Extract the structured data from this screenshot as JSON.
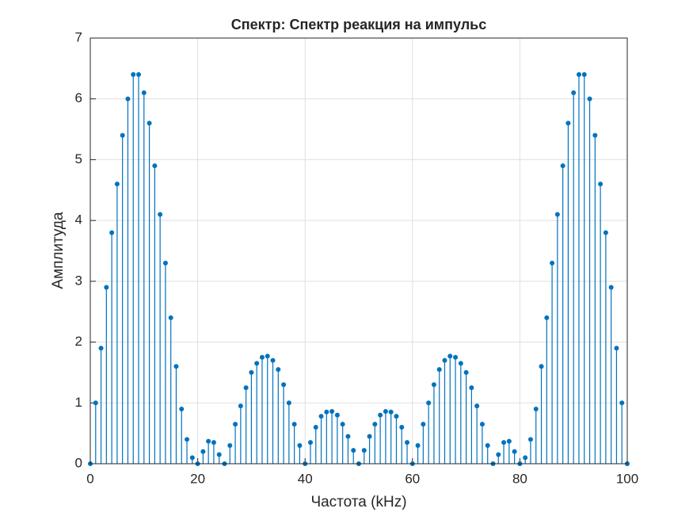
{
  "chart_data": {
    "type": "stem",
    "title": "Спектр: Спектр реакция на импульс",
    "xlabel": "Частота (kHz)",
    "ylabel": "Амплитуда",
    "color": "#0072bd",
    "grid": true,
    "xlim": [
      0,
      100
    ],
    "ylim": [
      0,
      7
    ],
    "xticks": [
      0,
      20,
      40,
      60,
      80,
      100
    ],
    "yticks": [
      0,
      1,
      2,
      3,
      4,
      5,
      6,
      7
    ],
    "x": [
      0,
      1,
      2,
      3,
      4,
      5,
      6,
      7,
      8,
      9,
      10,
      11,
      12,
      13,
      14,
      15,
      16,
      17,
      18,
      19,
      20,
      21,
      22,
      23,
      24,
      25,
      26,
      27,
      28,
      29,
      30,
      31,
      32,
      33,
      34,
      35,
      36,
      37,
      38,
      39,
      40,
      41,
      42,
      43,
      44,
      45,
      46,
      47,
      48,
      49,
      50,
      51,
      52,
      53,
      54,
      55,
      56,
      57,
      58,
      59,
      60,
      61,
      62,
      63,
      64,
      65,
      66,
      67,
      68,
      69,
      70,
      71,
      72,
      73,
      74,
      75,
      76,
      77,
      78,
      79,
      80,
      81,
      82,
      83,
      84,
      85,
      86,
      87,
      88,
      89,
      90,
      91,
      92,
      93,
      94,
      95,
      96,
      97,
      98,
      99,
      100
    ],
    "values": [
      0,
      1.0,
      1.9,
      2.9,
      3.8,
      4.6,
      5.4,
      6.0,
      6.4,
      6.4,
      6.1,
      5.6,
      4.9,
      4.1,
      3.3,
      2.4,
      1.6,
      0.9,
      0.4,
      0.1,
      0,
      0.2,
      0.37,
      0.35,
      0.15,
      0,
      0.3,
      0.65,
      0.95,
      1.25,
      1.5,
      1.65,
      1.75,
      1.77,
      1.7,
      1.55,
      1.3,
      1.0,
      0.65,
      0.3,
      0,
      0.35,
      0.6,
      0.78,
      0.85,
      0.86,
      0.8,
      0.65,
      0.45,
      0.22,
      0,
      0.22,
      0.45,
      0.65,
      0.8,
      0.86,
      0.85,
      0.78,
      0.6,
      0.35,
      0,
      0.3,
      0.65,
      1.0,
      1.3,
      1.55,
      1.7,
      1.77,
      1.75,
      1.65,
      1.5,
      1.25,
      0.95,
      0.65,
      0.3,
      0,
      0.15,
      0.35,
      0.37,
      0.2,
      0,
      0.1,
      0.4,
      0.9,
      1.6,
      2.4,
      3.3,
      4.1,
      4.9,
      5.6,
      6.1,
      6.4,
      6.4,
      6.0,
      5.4,
      4.6,
      3.8,
      2.9,
      1.9,
      1.0,
      0
    ]
  }
}
